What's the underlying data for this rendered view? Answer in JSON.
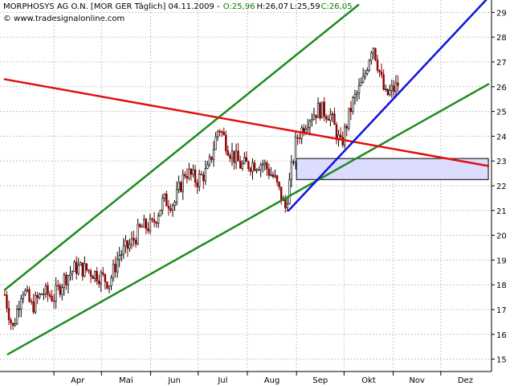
{
  "header": {
    "title": "MORPHOSYS AG O.N. [MOR GER  Täglich] 04.11.2009 - ",
    "open": "O:25,96",
    "high": "H:26,07",
    "low": "L:25,59",
    "close": "C:26,05",
    "source": "© www.tradesignalonline.com"
  },
  "colors": {
    "background": "#ffffff",
    "grid": "#c8c8c8",
    "up": "#000000",
    "down": "#8b0000",
    "green_line": "#1e8c1e",
    "red_line": "#e01010",
    "blue_line": "#1010e0",
    "zone_fill": "#dcdcff",
    "header_green": "#008000"
  },
  "chart_data": {
    "type": "candlestick",
    "title": "MORPHOSYS AG O.N. [MOR GER  Täglich] 04.11.2009",
    "x_tick_labels": [
      "Apr",
      "Mai",
      "Jun",
      "Jul",
      "Aug",
      "Sep",
      "Okt",
      "Nov",
      "Dez"
    ],
    "y_tick_labels": [
      "15",
      "16",
      "17",
      "18",
      "19",
      "20",
      "21",
      "22",
      "23",
      "24",
      "25",
      "26",
      "27",
      "28",
      "29"
    ],
    "ylim": [
      14.5,
      29.5
    ],
    "x_axis_position": "bottom",
    "y_axis_position": "right",
    "grid": true,
    "price_path": [
      {
        "date": "2009-03-01",
        "price": 17.6
      },
      {
        "date": "2009-03-06",
        "price": 16.2
      },
      {
        "date": "2009-03-12",
        "price": 17.9
      },
      {
        "date": "2009-03-18",
        "price": 17.1
      },
      {
        "date": "2009-03-25",
        "price": 17.7
      },
      {
        "date": "2009-04-01",
        "price": 17.5
      },
      {
        "date": "2009-04-08",
        "price": 18.3
      },
      {
        "date": "2009-04-15",
        "price": 18.7
      },
      {
        "date": "2009-04-22",
        "price": 18.6
      },
      {
        "date": "2009-04-29",
        "price": 18.4
      },
      {
        "date": "2009-05-06",
        "price": 18.1
      },
      {
        "date": "2009-05-12",
        "price": 19.2
      },
      {
        "date": "2009-05-19",
        "price": 19.6
      },
      {
        "date": "2009-05-26",
        "price": 20.3
      },
      {
        "date": "2009-06-02",
        "price": 20.4
      },
      {
        "date": "2009-06-09",
        "price": 21.4
      },
      {
        "date": "2009-06-16",
        "price": 21.3
      },
      {
        "date": "2009-06-23",
        "price": 22.6
      },
      {
        "date": "2009-06-30",
        "price": 22.2
      },
      {
        "date": "2009-07-07",
        "price": 22.6
      },
      {
        "date": "2009-07-14",
        "price": 24.4
      },
      {
        "date": "2009-07-21",
        "price": 23.4
      },
      {
        "date": "2009-07-28",
        "price": 22.8
      },
      {
        "date": "2009-08-04",
        "price": 22.9
      },
      {
        "date": "2009-08-11",
        "price": 22.9
      },
      {
        "date": "2009-08-18",
        "price": 22.3
      },
      {
        "date": "2009-08-25",
        "price": 21.1
      },
      {
        "date": "2009-09-01",
        "price": 23.9
      },
      {
        "date": "2009-09-08",
        "price": 24.7
      },
      {
        "date": "2009-09-15",
        "price": 25.1
      },
      {
        "date": "2009-09-22",
        "price": 24.9
      },
      {
        "date": "2009-09-29",
        "price": 23.6
      },
      {
        "date": "2009-10-06",
        "price": 25.3
      },
      {
        "date": "2009-10-13",
        "price": 26.2
      },
      {
        "date": "2009-10-19",
        "price": 27.8
      },
      {
        "date": "2009-10-27",
        "price": 25.6
      },
      {
        "date": "2009-11-04",
        "price": 26.05
      }
    ],
    "last_bar": {
      "date": "2009-11-04",
      "open": 25.96,
      "high": 26.07,
      "low": 25.59,
      "close": 26.05
    },
    "trend_lines": [
      {
        "color": "green",
        "from": {
          "date": "2009-03-01",
          "price": 17.8
        },
        "to": {
          "date": "2009-10-10",
          "price": 29.3
        }
      },
      {
        "color": "green",
        "from": {
          "date": "2009-03-03",
          "price": 15.2
        },
        "to": {
          "date": "2009-12-31",
          "price": 26.1
        }
      },
      {
        "color": "red",
        "from": {
          "date": "2009-03-01",
          "price": 26.3
        },
        "to": {
          "date": "2009-12-31",
          "price": 22.8
        }
      },
      {
        "color": "blue",
        "from": {
          "date": "2009-08-27",
          "price": 21.0
        },
        "to": {
          "date": "2009-12-31",
          "price": 29.6
        }
      }
    ],
    "zone": {
      "from_date": "2009-09-01",
      "to_date": "2009-12-31",
      "low": 22.25,
      "high": 23.1
    }
  }
}
